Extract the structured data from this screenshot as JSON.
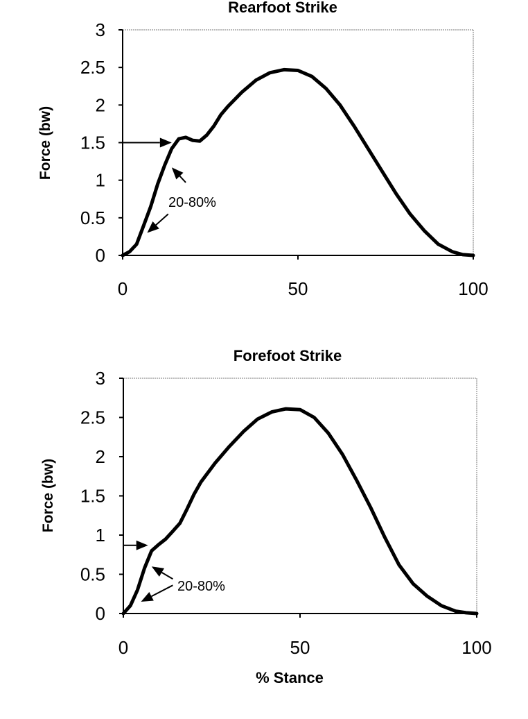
{
  "chart_data": [
    {
      "type": "line",
      "title": "Rearfoot Strike",
      "xlabel": "",
      "ylabel": "Force (bw)",
      "xlim": [
        0,
        100
      ],
      "ylim": [
        0,
        3
      ],
      "xticks": [
        "0",
        "50",
        "100"
      ],
      "yticks": [
        "0",
        "0.5",
        "1",
        "1.5",
        "2",
        "2.5",
        "3"
      ],
      "grid": false,
      "series": [
        {
          "x": [
            0,
            2,
            4,
            6,
            8,
            10,
            12,
            14,
            16,
            18,
            20,
            22,
            24,
            26,
            28,
            30,
            34,
            38,
            42,
            46,
            50,
            54,
            58,
            62,
            66,
            70,
            74,
            78,
            82,
            86,
            90,
            94,
            97,
            100
          ],
          "values": [
            0,
            0.05,
            0.15,
            0.4,
            0.65,
            0.95,
            1.2,
            1.42,
            1.55,
            1.57,
            1.53,
            1.52,
            1.6,
            1.72,
            1.87,
            1.98,
            2.17,
            2.33,
            2.43,
            2.47,
            2.46,
            2.38,
            2.22,
            2.0,
            1.72,
            1.42,
            1.12,
            0.82,
            0.55,
            0.33,
            0.15,
            0.05,
            0.01,
            0
          ]
        }
      ],
      "annotations": [
        {
          "text": "20-80%"
        },
        {
          "type": "arrow",
          "from": [
            0,
            1.5
          ],
          "to": [
            14,
            1.5
          ]
        },
        {
          "type": "arrow",
          "from": [
            18,
            0.97
          ],
          "to": [
            14,
            1.17
          ]
        },
        {
          "type": "arrow",
          "from": [
            13,
            0.55
          ],
          "to": [
            7,
            0.3
          ]
        }
      ]
    },
    {
      "type": "line",
      "title": "Forefoot Strike",
      "xlabel": "% Stance",
      "ylabel": "Force (bw)",
      "xlim": [
        0,
        100
      ],
      "ylim": [
        0,
        3
      ],
      "xticks": [
        "0",
        "50",
        "100"
      ],
      "yticks": [
        "0",
        "0.5",
        "1",
        "1.5",
        "2",
        "2.5",
        "3"
      ],
      "grid": false,
      "series": [
        {
          "x": [
            0,
            2,
            4,
            6,
            8,
            10,
            12,
            14,
            16,
            18,
            20,
            22,
            26,
            30,
            34,
            38,
            42,
            46,
            50,
            54,
            58,
            62,
            66,
            70,
            74,
            78,
            82,
            86,
            90,
            94,
            97,
            100
          ],
          "values": [
            0,
            0.1,
            0.3,
            0.58,
            0.8,
            0.88,
            0.95,
            1.05,
            1.15,
            1.33,
            1.52,
            1.68,
            1.92,
            2.13,
            2.32,
            2.48,
            2.57,
            2.61,
            2.6,
            2.5,
            2.3,
            2.03,
            1.7,
            1.35,
            0.97,
            0.62,
            0.38,
            0.22,
            0.1,
            0.03,
            0.01,
            0
          ]
        }
      ],
      "annotations": [
        {
          "text": "20-80%"
        },
        {
          "type": "arrow",
          "from": [
            0,
            0.87
          ],
          "to": [
            7,
            0.87
          ]
        },
        {
          "type": "arrow",
          "from": [
            14,
            0.44
          ],
          "to": [
            8,
            0.6
          ]
        },
        {
          "type": "arrow",
          "from": [
            14,
            0.36
          ],
          "to": [
            5,
            0.15
          ]
        }
      ]
    }
  ]
}
